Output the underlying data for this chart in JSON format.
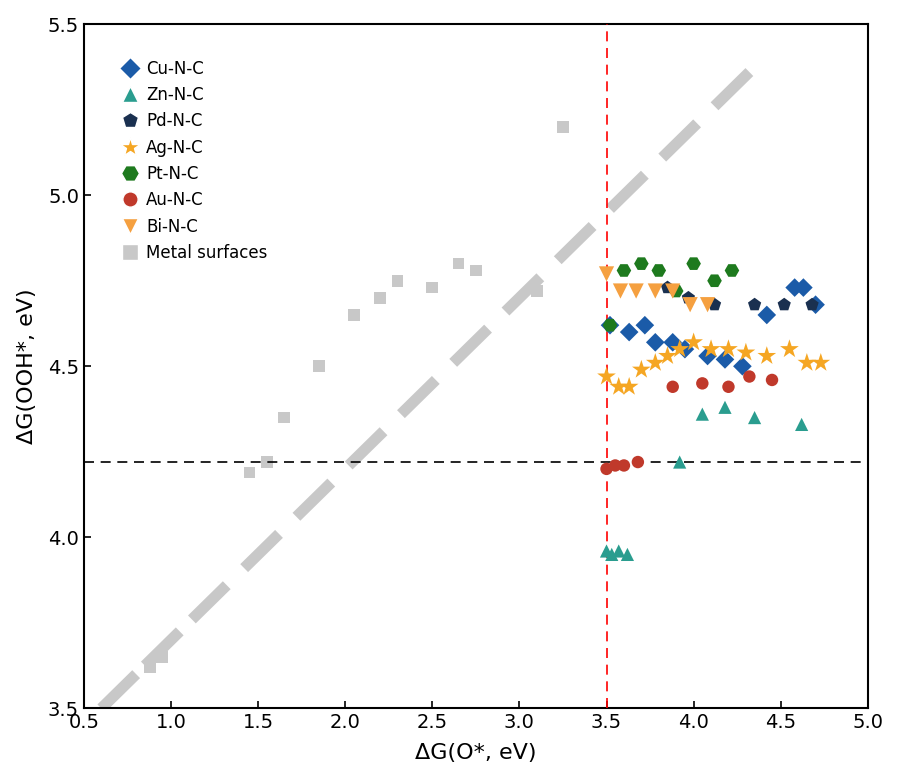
{
  "xlabel": "ΔG(O*, eV)",
  "ylabel": "ΔG(OOH*, eV)",
  "xlim": [
    0.5,
    5.0
  ],
  "ylim": [
    3.5,
    5.5
  ],
  "xticks": [
    0.5,
    1.0,
    1.5,
    2.0,
    2.5,
    3.0,
    3.5,
    4.0,
    4.5,
    5.0
  ],
  "yticks": [
    3.5,
    4.0,
    4.5,
    5.0,
    5.5
  ],
  "hline_y": 4.22,
  "vline_x": 3.5,
  "metal_surfaces": {
    "x": [
      0.88,
      0.95,
      1.45,
      1.55,
      1.65,
      1.85,
      2.05,
      2.2,
      2.3,
      2.5,
      2.65,
      2.75,
      3.1,
      3.25
    ],
    "y": [
      3.62,
      3.65,
      4.19,
      4.22,
      4.35,
      4.5,
      4.65,
      4.7,
      4.75,
      4.73,
      4.8,
      4.78,
      4.72,
      5.2
    ],
    "color": "#c8c8c8",
    "marker": "s",
    "size": 70
  },
  "Cu_NC": {
    "label": "Cu-N-C",
    "color": "#1b5ba8",
    "marker": "D",
    "size": 90,
    "x": [
      3.52,
      3.63,
      3.72,
      3.78,
      3.88,
      3.95,
      4.08,
      4.18,
      4.28,
      4.42,
      4.58,
      4.63,
      4.7
    ],
    "y": [
      4.62,
      4.6,
      4.62,
      4.57,
      4.57,
      4.55,
      4.53,
      4.52,
      4.5,
      4.65,
      4.73,
      4.73,
      4.68
    ]
  },
  "Zn_NC": {
    "label": "Zn-N-C",
    "color": "#2a9d8f",
    "marker": "^",
    "size": 90,
    "x": [
      3.5,
      3.53,
      3.57,
      3.62,
      3.92,
      4.05,
      4.18,
      4.35,
      4.62
    ],
    "y": [
      3.96,
      3.95,
      3.96,
      3.95,
      4.22,
      4.36,
      4.38,
      4.35,
      4.33
    ]
  },
  "Pd_NC": {
    "label": "Pd-N-C",
    "color": "#1a3050",
    "marker": "p",
    "size": 100,
    "x": [
      3.85,
      3.97,
      4.12,
      4.35,
      4.52,
      4.68
    ],
    "y": [
      4.73,
      4.7,
      4.68,
      4.68,
      4.68,
      4.68
    ]
  },
  "Ag_NC": {
    "label": "Ag-N-C",
    "color": "#f5a623",
    "marker": "*",
    "size": 200,
    "x": [
      3.5,
      3.57,
      3.63,
      3.7,
      3.78,
      3.85,
      3.92,
      4.0,
      4.1,
      4.2,
      4.3,
      4.42,
      4.55,
      4.65,
      4.73
    ],
    "y": [
      4.47,
      4.44,
      4.44,
      4.49,
      4.51,
      4.53,
      4.55,
      4.57,
      4.55,
      4.55,
      4.54,
      4.53,
      4.55,
      4.51,
      4.51
    ]
  },
  "Pt_NC": {
    "label": "Pt-N-C",
    "color": "#1e7a1e",
    "marker": "H",
    "size": 110,
    "x": [
      3.52,
      3.6,
      3.7,
      3.8,
      3.9,
      4.0,
      4.12,
      4.22
    ],
    "y": [
      4.62,
      4.78,
      4.8,
      4.78,
      4.72,
      4.8,
      4.75,
      4.78
    ]
  },
  "Au_NC": {
    "label": "Au-N-C",
    "color": "#c0392b",
    "marker": "o",
    "size": 80,
    "x": [
      3.5,
      3.55,
      3.6,
      3.68,
      3.88,
      4.05,
      4.2,
      4.32,
      4.45
    ],
    "y": [
      4.2,
      4.21,
      4.21,
      4.22,
      4.44,
      4.45,
      4.44,
      4.47,
      4.46
    ]
  },
  "Bi_NC": {
    "label": "Bi-N-C",
    "color": "#f5a040",
    "marker": "v",
    "size": 120,
    "x": [
      3.5,
      3.58,
      3.67,
      3.78,
      3.88,
      3.98,
      4.08
    ],
    "y": [
      4.77,
      4.72,
      4.72,
      4.72,
      4.72,
      4.68,
      4.68
    ]
  },
  "dash_segments": [
    {
      "x": [
        0.6,
        0.8
      ],
      "y": [
        3.5,
        3.6
      ]
    },
    {
      "x": [
        0.85,
        1.05
      ],
      "y": [
        3.625,
        3.725
      ]
    },
    {
      "x": [
        1.12,
        1.32
      ],
      "y": [
        3.76,
        3.86
      ]
    },
    {
      "x": [
        1.42,
        1.62
      ],
      "y": [
        3.91,
        4.01
      ]
    },
    {
      "x": [
        1.72,
        1.92
      ],
      "y": [
        4.06,
        4.16
      ]
    },
    {
      "x": [
        2.02,
        2.22
      ],
      "y": [
        4.21,
        4.31
      ]
    },
    {
      "x": [
        2.32,
        2.52
      ],
      "y": [
        4.36,
        4.46
      ]
    },
    {
      "x": [
        2.62,
        2.82
      ],
      "y": [
        4.51,
        4.61
      ]
    },
    {
      "x": [
        2.92,
        3.12
      ],
      "y": [
        4.66,
        4.76
      ]
    },
    {
      "x": [
        3.22,
        3.42
      ],
      "y": [
        4.81,
        4.91
      ]
    },
    {
      "x": [
        3.52,
        3.72
      ],
      "y": [
        4.96,
        5.06
      ]
    },
    {
      "x": [
        3.82,
        4.02
      ],
      "y": [
        5.11,
        5.21
      ]
    },
    {
      "x": [
        4.12,
        4.32
      ],
      "y": [
        5.26,
        5.36
      ]
    }
  ]
}
